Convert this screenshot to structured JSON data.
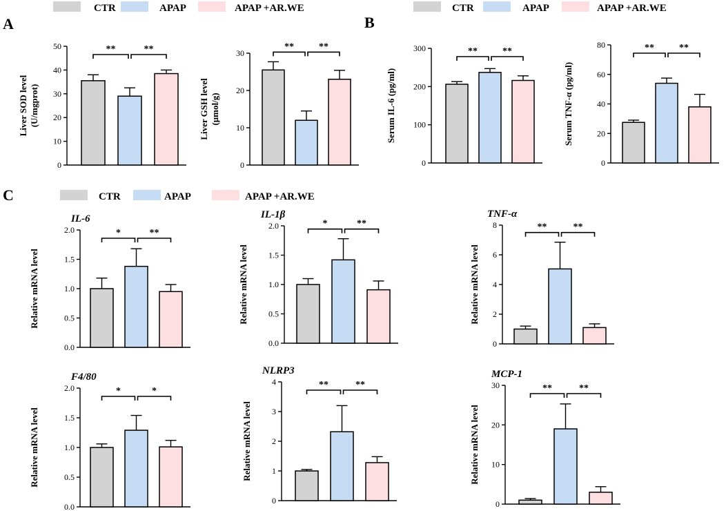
{
  "colors": {
    "CTR": "#d3d3d3",
    "APAP": "#c6dcf5",
    "APAP_AR_WE": "#fddfe2",
    "outline": "#000000"
  },
  "legend": {
    "groups": [
      {
        "label": "CTR",
        "color": "#d3d3d3"
      },
      {
        "label": "APAP",
        "color": "#c6dcf5"
      },
      {
        "label": "APAP +AR.WE",
        "color": "#fddfe2"
      }
    ]
  },
  "panels": {
    "A": "A",
    "B": "B",
    "C": "C"
  },
  "chart_data": [
    {
      "id": "sod",
      "type": "bar",
      "ylabel": [
        "Liver SOD level",
        "(U/mgprot)"
      ],
      "title": "",
      "ylim": [
        0,
        50
      ],
      "ticks": [
        0,
        10,
        20,
        30,
        40,
        50
      ],
      "tick_labels": [
        "0",
        "10",
        "20",
        "30",
        "40",
        "50"
      ],
      "categories": [
        "CTR",
        "APAP",
        "APAP +AR.WE"
      ],
      "values": [
        35.5,
        29,
        38.5
      ],
      "errors": [
        2.5,
        3.5,
        1.5
      ],
      "sig": [
        {
          "from": 0,
          "to": 1,
          "text": "**"
        },
        {
          "from": 1,
          "to": 2,
          "text": "**"
        }
      ]
    },
    {
      "id": "gsh",
      "type": "bar",
      "ylabel": [
        "Liver GSH level",
        "(μmol/g)"
      ],
      "title": "",
      "ylim": [
        0,
        30
      ],
      "ticks": [
        0,
        10,
        20,
        30
      ],
      "tick_labels": [
        "0",
        "10",
        "20",
        "30"
      ],
      "categories": [
        "CTR",
        "APAP",
        "APAP +AR.WE"
      ],
      "values": [
        25.5,
        12,
        23
      ],
      "errors": [
        2.2,
        2.5,
        2.4
      ],
      "sig": [
        {
          "from": 0,
          "to": 1,
          "text": "**"
        },
        {
          "from": 1,
          "to": 2,
          "text": "**"
        }
      ]
    },
    {
      "id": "il6s",
      "type": "bar",
      "ylabel": [
        "Serum IL-6 (pg/ml)"
      ],
      "title": "",
      "ylim": [
        0,
        300
      ],
      "ticks": [
        0,
        100,
        200,
        300
      ],
      "tick_labels": [
        "0",
        "100",
        "200",
        "300"
      ],
      "categories": [
        "CTR",
        "APAP",
        "APAP +AR.WE"
      ],
      "values": [
        206,
        237,
        216
      ],
      "errors": [
        7,
        10,
        12
      ],
      "sig": [
        {
          "from": 0,
          "to": 1,
          "text": "**"
        },
        {
          "from": 1,
          "to": 2,
          "text": "**"
        }
      ]
    },
    {
      "id": "tnfs",
      "type": "bar",
      "ylabel": [
        "Serum TNF-α (pg/ml)"
      ],
      "title": "",
      "ylim": [
        0,
        80
      ],
      "ticks": [
        0,
        20,
        40,
        60,
        80
      ],
      "tick_labels": [
        "0",
        "20",
        "40",
        "60",
        "80"
      ],
      "categories": [
        "CTR",
        "APAP",
        "APAP +AR.WE"
      ],
      "values": [
        27.5,
        54,
        38
      ],
      "errors": [
        1.5,
        3.5,
        8.5
      ],
      "sig": [
        {
          "from": 0,
          "to": 1,
          "text": "**"
        },
        {
          "from": 1,
          "to": 2,
          "text": "**"
        }
      ]
    },
    {
      "id": "il6",
      "type": "bar",
      "ylabel": [
        "Relative mRNA level"
      ],
      "title": "IL-6",
      "ylim": [
        0,
        2
      ],
      "ticks": [
        0,
        0.5,
        1,
        1.5,
        2
      ],
      "tick_labels": [
        "0.0",
        "0.5",
        "1.0",
        "1.5",
        "2.0"
      ],
      "categories": [
        "CTR",
        "APAP",
        "APAP +AR.WE"
      ],
      "values": [
        1.0,
        1.38,
        0.95
      ],
      "errors": [
        0.18,
        0.3,
        0.12
      ],
      "sig": [
        {
          "from": 0,
          "to": 1,
          "text": "*"
        },
        {
          "from": 1,
          "to": 2,
          "text": "**"
        }
      ]
    },
    {
      "id": "il1b",
      "type": "bar",
      "ylabel": [
        "Relative mRNA level"
      ],
      "title": "IL-1β",
      "ylim": [
        0,
        2
      ],
      "ticks": [
        0,
        0.5,
        1,
        1.5,
        2
      ],
      "tick_labels": [
        "0.0",
        "0.5",
        "1.0",
        "1.5",
        "2.0"
      ],
      "categories": [
        "CTR",
        "APAP",
        "APAP +AR.WE"
      ],
      "values": [
        1.0,
        1.42,
        0.91
      ],
      "errors": [
        0.1,
        0.36,
        0.15
      ],
      "sig": [
        {
          "from": 0,
          "to": 1,
          "text": "*"
        },
        {
          "from": 1,
          "to": 2,
          "text": "**"
        }
      ]
    },
    {
      "id": "tnf",
      "type": "bar",
      "ylabel": [
        "Relative mRNA level"
      ],
      "title": "TNF-α",
      "ylim": [
        0,
        8
      ],
      "ticks": [
        0,
        2,
        4,
        6,
        8
      ],
      "tick_labels": [
        "0",
        "2",
        "4",
        "6",
        "8"
      ],
      "categories": [
        "CTR",
        "APAP",
        "APAP +AR.WE"
      ],
      "values": [
        1.0,
        5.05,
        1.1
      ],
      "errors": [
        0.2,
        1.8,
        0.25
      ],
      "sig": [
        {
          "from": 0,
          "to": 1,
          "text": "**"
        },
        {
          "from": 1,
          "to": 2,
          "text": "**"
        }
      ]
    },
    {
      "id": "f480",
      "type": "bar",
      "ylabel": [
        "Relative mRNA level"
      ],
      "title": "F4/80",
      "ylim": [
        0,
        2
      ],
      "ticks": [
        0,
        0.5,
        1,
        1.5,
        2
      ],
      "tick_labels": [
        "0.0",
        "0.5",
        "1.0",
        "1.5",
        "2.0"
      ],
      "categories": [
        "CTR",
        "APAP",
        "APAP +AR.WE"
      ],
      "values": [
        1.0,
        1.29,
        1.01
      ],
      "errors": [
        0.06,
        0.25,
        0.11
      ],
      "sig": [
        {
          "from": 0,
          "to": 1,
          "text": "*"
        },
        {
          "from": 1,
          "to": 2,
          "text": "*"
        }
      ]
    },
    {
      "id": "nlrp3",
      "type": "bar",
      "ylabel": [
        "Relative mRNA level"
      ],
      "title": "NLRP3",
      "ylim": [
        0,
        4
      ],
      "ticks": [
        0,
        1,
        2,
        3,
        4
      ],
      "tick_labels": [
        "0",
        "1",
        "2",
        "3",
        "4"
      ],
      "categories": [
        "CTR",
        "APAP",
        "APAP +AR.WE"
      ],
      "values": [
        1.0,
        2.32,
        1.28
      ],
      "errors": [
        0.05,
        0.88,
        0.2
      ],
      "sig": [
        {
          "from": 0,
          "to": 1,
          "text": "**"
        },
        {
          "from": 1,
          "to": 2,
          "text": "**"
        }
      ]
    },
    {
      "id": "mcp1",
      "type": "bar",
      "ylabel": [
        "Relative mRNA level"
      ],
      "title": "MCP-1",
      "ylim": [
        0,
        30
      ],
      "ticks": [
        0,
        10,
        20,
        30
      ],
      "tick_labels": [
        "0",
        "10",
        "20",
        "30"
      ],
      "categories": [
        "CTR",
        "APAP",
        "APAP +AR.WE"
      ],
      "values": [
        1.0,
        19,
        3.0
      ],
      "errors": [
        0.4,
        6.3,
        1.4
      ],
      "sig": [
        {
          "from": 0,
          "to": 1,
          "text": "**"
        },
        {
          "from": 1,
          "to": 2,
          "text": "**"
        }
      ]
    }
  ]
}
